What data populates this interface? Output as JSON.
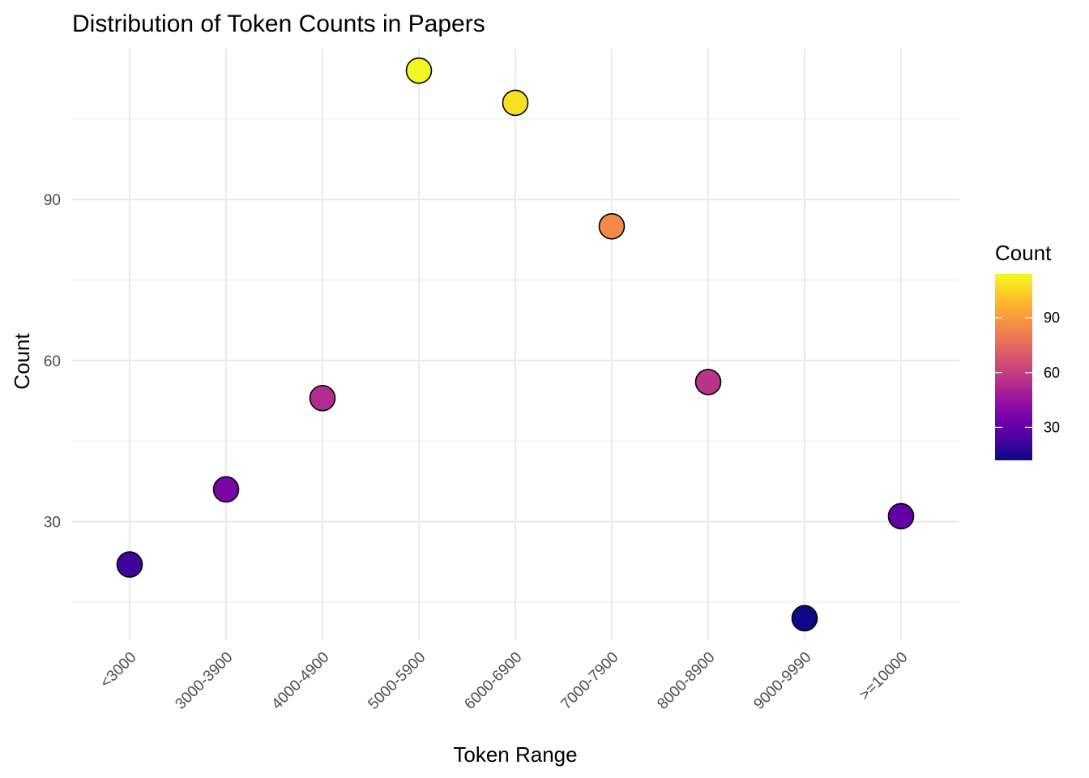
{
  "chart_data": {
    "type": "scatter",
    "title": "Distribution of Token Counts in Papers",
    "xlabel": "Token Range",
    "ylabel": "Count",
    "categories": [
      "<3000",
      "3000-3900",
      "4000-4900",
      "5000-5900",
      "6000-6900",
      "7000-7900",
      "8000-8900",
      "9000-9990",
      ">=10000"
    ],
    "values": [
      22,
      36,
      53,
      114,
      108,
      85,
      56,
      12,
      31
    ],
    "ylim": [
      7.9,
      118.1
    ],
    "yticks": [
      30,
      60,
      90
    ],
    "yticks_minor": [
      15,
      45,
      75,
      105
    ],
    "grid": true,
    "x_tick_rotation": 45,
    "legend": {
      "title": "Count",
      "placement": "right",
      "type": "colorbar",
      "palette": "plasma",
      "range": [
        12,
        114
      ],
      "ticks": [
        30,
        60,
        90
      ]
    }
  }
}
